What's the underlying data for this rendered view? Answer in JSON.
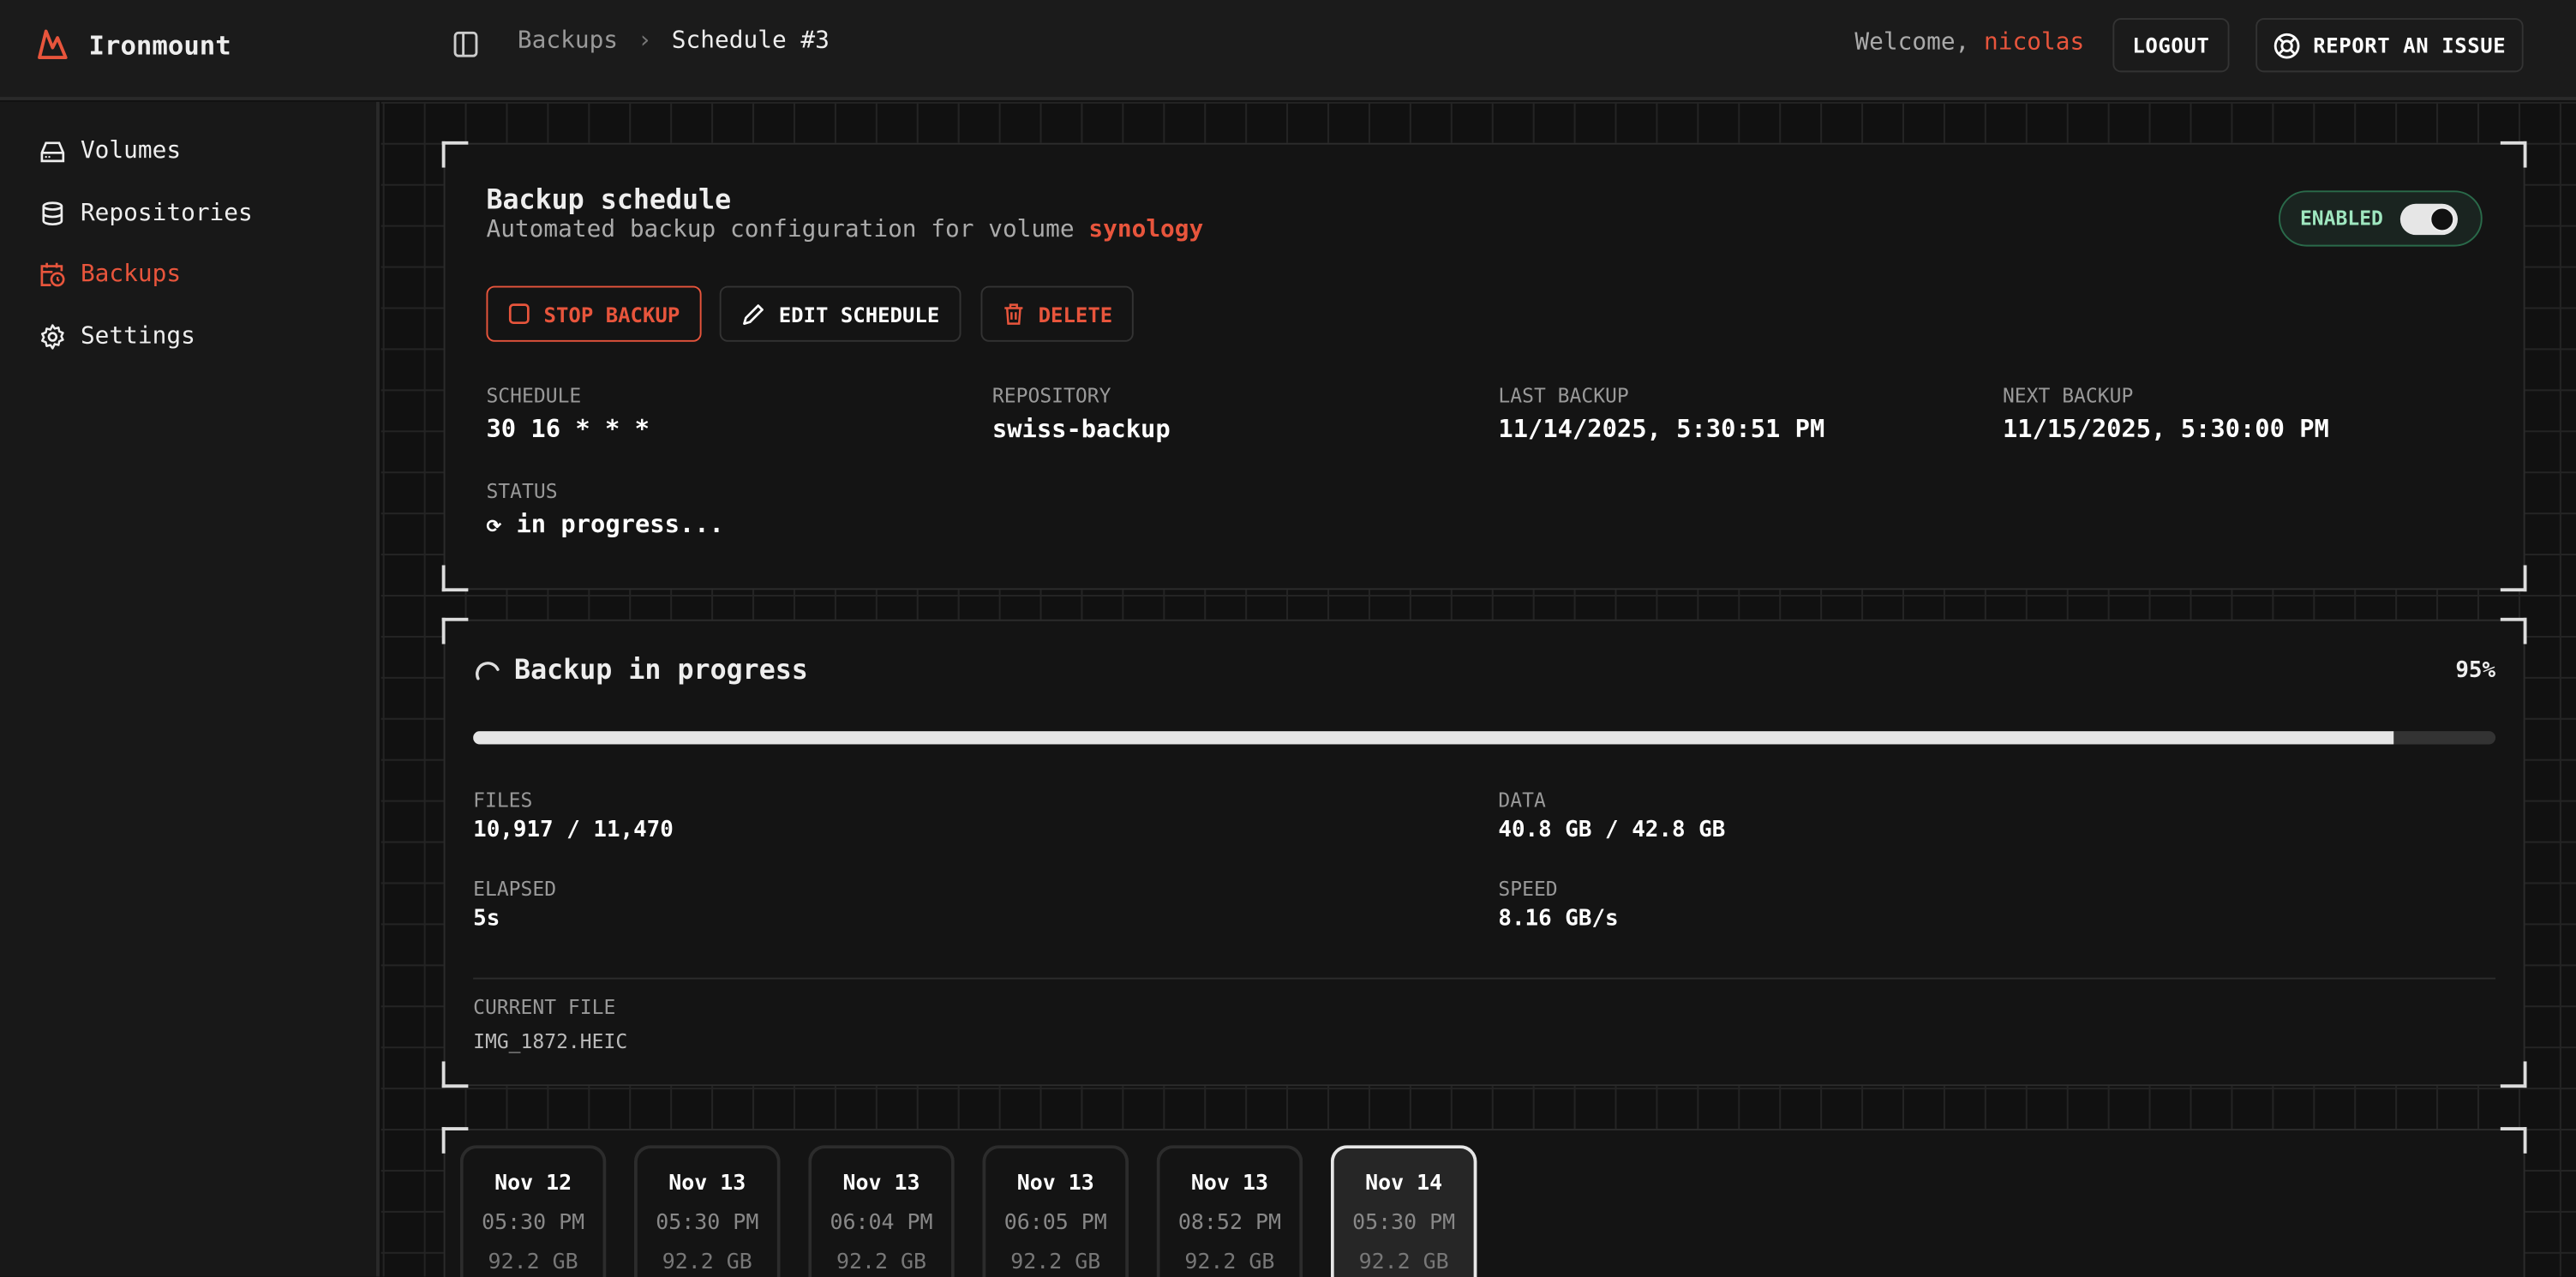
{
  "app": {
    "name": "Ironmount",
    "accent": "#e8553c"
  },
  "breadcrumb": [
    "Backups",
    "Schedule #3"
  ],
  "header": {
    "welcome": "Welcome,",
    "user": "nicolas",
    "logout": "LOGOUT",
    "report": "REPORT AN ISSUE"
  },
  "sidebar": {
    "items": [
      {
        "label": "Volumes",
        "icon": "hard-drive-icon"
      },
      {
        "label": "Repositories",
        "icon": "database-icon"
      },
      {
        "label": "Backups",
        "icon": "calendar-clock-icon",
        "active": true
      },
      {
        "label": "Settings",
        "icon": "gear-icon"
      }
    ]
  },
  "schedule": {
    "title": "Backup schedule",
    "subtitle": "Automated backup configuration for volume",
    "volume": "synology",
    "enabled_label": "ENABLED",
    "enabled": true,
    "actions": {
      "stop": "STOP BACKUP",
      "edit": "EDIT SCHEDULE",
      "delete": "DELETE"
    },
    "fields": [
      {
        "label": "SCHEDULE",
        "value": "30 16 * * *"
      },
      {
        "label": "REPOSITORY",
        "value": "swiss-backup"
      },
      {
        "label": "LAST BACKUP",
        "value": "11/14/2025, 5:30:51 PM"
      },
      {
        "label": "NEXT BACKUP",
        "value": "11/15/2025, 5:30:00 PM"
      }
    ],
    "status_label": "STATUS",
    "status_icon": "⟳",
    "status": "in progress..."
  },
  "progress": {
    "title": "Backup in progress",
    "percent_label": "95%",
    "percent": 95,
    "files_label": "FILES",
    "files": "10,917 / 11,470",
    "data_label": "DATA",
    "data": "40.8 GB / 42.8 GB",
    "elapsed_label": "ELAPSED",
    "elapsed": "5s",
    "speed_label": "SPEED",
    "speed": "8.16 GB/s",
    "current_file_label": "CURRENT FILE",
    "current_file": "IMG_1872.HEIC"
  },
  "snapshots": [
    {
      "date": "Nov 12",
      "time": "05:30 PM",
      "size": "92.2 GB"
    },
    {
      "date": "Nov 13",
      "time": "05:30 PM",
      "size": "92.2 GB"
    },
    {
      "date": "Nov 13",
      "time": "06:04 PM",
      "size": "92.2 GB"
    },
    {
      "date": "Nov 13",
      "time": "06:05 PM",
      "size": "92.2 GB"
    },
    {
      "date": "Nov 13",
      "time": "08:52 PM",
      "size": "92.2 GB"
    },
    {
      "date": "Nov 14",
      "time": "05:30 PM",
      "size": "92.2 GB",
      "selected": true
    }
  ]
}
